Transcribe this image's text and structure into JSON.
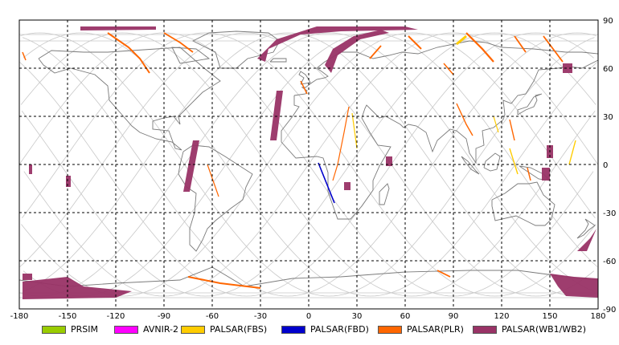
{
  "map": {
    "x_ticks": [
      "-180",
      "-150",
      "-120",
      "-90",
      "-60",
      "-30",
      "0",
      "30",
      "60",
      "90",
      "120",
      "150",
      "180"
    ],
    "y_ticks": [
      "90",
      "60",
      "30",
      "0",
      "-30",
      "-60",
      "-90"
    ],
    "colors": {
      "grid": "#000000",
      "orbit": "#c8c8c8",
      "coast": "#7a7a7a",
      "frame": "#000000"
    }
  },
  "legend": [
    {
      "label": "PRSIM",
      "color": "#99cc00"
    },
    {
      "label": "AVNIR-2",
      "color": "#ff00ff"
    },
    {
      "label": "PALSAR(FBS)",
      "color": "#ffcc00"
    },
    {
      "label": "PALSAR(FBD)",
      "color": "#0000cc"
    },
    {
      "label": "PALSAR(PLR)",
      "color": "#ff6600"
    },
    {
      "label": "PALSAR(WB1/WB2)",
      "color": "#993366"
    }
  ]
}
